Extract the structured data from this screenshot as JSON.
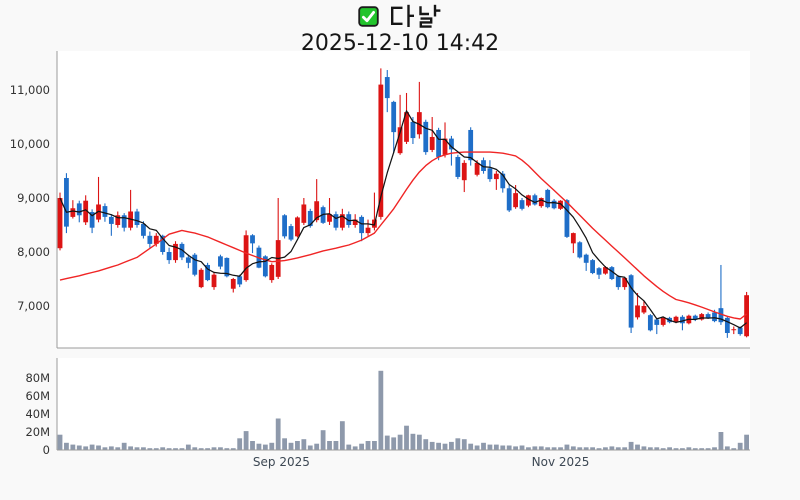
{
  "header": {
    "symbol_title": "다날",
    "checkbox_icon": "green-checked-checkbox",
    "datetime_title": "2025-12-10 14:42"
  },
  "colors": {
    "up_candle": "#dc1414",
    "down_candle": "#1f6ec8",
    "ma_short_line": "#141414",
    "ma_long_line": "#f02525",
    "volume_bar": "#8e99ab",
    "plot_background": "#ffffff",
    "page_background": "#f9f9f9",
    "spine": "#9b9b9b",
    "price_tick_label": "#333333",
    "x_tick_label": "#3d4854",
    "checkbox_green": "#22c42c"
  },
  "chart_data": {
    "type": "candlestick+volume",
    "title": "다날",
    "subtitle": "2025-12-10 14:42",
    "convention": "korean: red = up day, blue = down day",
    "series_legend": [
      {
        "name": "short moving average",
        "color": "black"
      },
      {
        "name": "long moving average",
        "color": "red"
      }
    ],
    "price_axis": {
      "ticks": [
        {
          "value": 11000,
          "label": "11,000"
        },
        {
          "value": 10000,
          "label": "10,000"
        },
        {
          "value": 9000,
          "label": "9,000"
        },
        {
          "value": 8000,
          "label": "8,000"
        },
        {
          "value": 7000,
          "label": "7,000"
        }
      ],
      "range": [
        6240,
        11760
      ],
      "grid": false
    },
    "volume_axis": {
      "ticks": [
        {
          "value": 80,
          "label": "80M"
        },
        {
          "value": 60,
          "label": "60M"
        },
        {
          "value": 40,
          "label": "40M"
        },
        {
          "value": 20,
          "label": "20M"
        },
        {
          "value": 0,
          "label": "0"
        }
      ],
      "range": [
        0,
        102
      ],
      "unit": "millions of shares"
    },
    "x_ticks": [
      {
        "day": 34.5,
        "label": "Sep 2025"
      },
      {
        "day": 78,
        "label": "Nov 2025"
      }
    ],
    "n_days": 108,
    "candles_ohlc": [
      [
        8070,
        9100,
        8030,
        9000
      ],
      [
        9370,
        9460,
        8350,
        8470
      ],
      [
        8650,
        8960,
        8620,
        8810
      ],
      [
        8900,
        8950,
        8550,
        8680
      ],
      [
        8550,
        9050,
        8500,
        8950
      ],
      [
        8740,
        8790,
        8350,
        8450
      ],
      [
        8600,
        9390,
        8550,
        8880
      ],
      [
        8850,
        8900,
        8560,
        8650
      ],
      [
        8650,
        8700,
        8300,
        8520
      ],
      [
        8500,
        8750,
        8450,
        8680
      ],
      [
        8680,
        8720,
        8380,
        8450
      ],
      [
        8450,
        9150,
        8400,
        8750
      ],
      [
        8750,
        8800,
        8450,
        8500
      ],
      [
        8520,
        8570,
        8250,
        8300
      ],
      [
        8300,
        8380,
        8080,
        8150
      ],
      [
        8150,
        8350,
        8100,
        8300
      ],
      [
        8300,
        8320,
        7950,
        8000
      ],
      [
        8000,
        8080,
        7780,
        7850
      ],
      [
        7850,
        8200,
        7800,
        8150
      ],
      [
        8150,
        8180,
        7850,
        7900
      ],
      [
        7900,
        7950,
        7700,
        7800
      ],
      [
        7950,
        7980,
        7550,
        7580
      ],
      [
        7350,
        7700,
        7330,
        7670
      ],
      [
        7760,
        7800,
        7460,
        7480
      ],
      [
        7350,
        7620,
        7300,
        7580
      ],
      [
        7920,
        7950,
        7680,
        7730
      ],
      [
        7890,
        7900,
        7530,
        7550
      ],
      [
        7320,
        7520,
        7250,
        7500
      ],
      [
        7550,
        7580,
        7350,
        7400
      ],
      [
        7480,
        8400,
        7450,
        8310
      ],
      [
        8310,
        8330,
        7980,
        8160
      ],
      [
        8080,
        8120,
        7700,
        7710
      ],
      [
        7920,
        7940,
        7530,
        7550
      ],
      [
        7480,
        7790,
        7430,
        7760
      ],
      [
        7540,
        9000,
        7500,
        8220
      ],
      [
        8680,
        8700,
        8250,
        8290
      ],
      [
        8480,
        8520,
        8200,
        8230
      ],
      [
        8290,
        8660,
        8270,
        8640
      ],
      [
        8540,
        9000,
        8500,
        8880
      ],
      [
        8760,
        8800,
        8450,
        8480
      ],
      [
        8590,
        9350,
        8550,
        8940
      ],
      [
        8830,
        8860,
        8520,
        8540
      ],
      [
        8560,
        9000,
        8500,
        8700
      ],
      [
        8700,
        8750,
        8400,
        8450
      ],
      [
        8450,
        8800,
        8400,
        8700
      ],
      [
        8700,
        8750,
        8450,
        8500
      ],
      [
        8500,
        8700,
        8450,
        8600
      ],
      [
        8650,
        8680,
        8200,
        8350
      ],
      [
        8350,
        8600,
        8300,
        8450
      ],
      [
        8450,
        9100,
        8400,
        8600
      ],
      [
        8650,
        11400,
        8600,
        11100
      ],
      [
        11240,
        11370,
        10590,
        10850
      ],
      [
        10780,
        10800,
        9830,
        10220
      ],
      [
        9830,
        10910,
        9800,
        10310
      ],
      [
        10040,
        10945,
        10000,
        10590
      ],
      [
        10410,
        10500,
        10000,
        10110
      ],
      [
        10180,
        11150,
        10100,
        10590
      ],
      [
        10410,
        10450,
        9800,
        9850
      ],
      [
        9890,
        10500,
        9850,
        10130
      ],
      [
        10260,
        10300,
        9700,
        9760
      ],
      [
        9800,
        10400,
        9750,
        10100
      ],
      [
        10100,
        10150,
        9600,
        9900
      ],
      [
        9760,
        9800,
        9350,
        9390
      ],
      [
        9330,
        9700,
        9110,
        9650
      ],
      [
        10260,
        10310,
        9600,
        9700
      ],
      [
        9430,
        9700,
        9400,
        9650
      ],
      [
        9700,
        9750,
        9450,
        9500
      ],
      [
        9550,
        9700,
        9300,
        9350
      ],
      [
        9350,
        9500,
        9150,
        9450
      ],
      [
        9450,
        9500,
        9100,
        9180
      ],
      [
        9180,
        9240,
        8740,
        8770
      ],
      [
        8830,
        9240,
        8800,
        9090
      ],
      [
        8960,
        9000,
        8770,
        8800
      ],
      [
        8860,
        9060,
        8830,
        9050
      ],
      [
        9050,
        9080,
        8860,
        8880
      ],
      [
        8850,
        9010,
        8820,
        9000
      ],
      [
        9150,
        9170,
        8810,
        8830
      ],
      [
        8950,
        8980,
        8790,
        8810
      ],
      [
        8800,
        8960,
        8780,
        8950
      ],
      [
        8960,
        8980,
        8260,
        8280
      ],
      [
        8160,
        8360,
        7980,
        8350
      ],
      [
        8180,
        8200,
        7880,
        7900
      ],
      [
        7950,
        7970,
        7650,
        7800
      ],
      [
        7850,
        7870,
        7590,
        7610
      ],
      [
        7700,
        7720,
        7500,
        7580
      ],
      [
        7600,
        7740,
        7580,
        7720
      ],
      [
        7720,
        7740,
        7480,
        7500
      ],
      [
        7550,
        7570,
        7300,
        7350
      ],
      [
        7350,
        7530,
        7300,
        7520
      ],
      [
        7570,
        7590,
        6500,
        6600
      ],
      [
        6790,
        7240,
        6750,
        7010
      ],
      [
        6880,
        7100,
        6850,
        7000
      ],
      [
        6830,
        6850,
        6530,
        6550
      ],
      [
        6750,
        6780,
        6480,
        6650
      ],
      [
        6650,
        6800,
        6620,
        6780
      ],
      [
        6780,
        6800,
        6680,
        6700
      ],
      [
        6700,
        6820,
        6680,
        6800
      ],
      [
        6800,
        6830,
        6550,
        6680
      ],
      [
        6680,
        6840,
        6660,
        6820
      ],
      [
        6820,
        6840,
        6720,
        6750
      ],
      [
        6750,
        6870,
        6730,
        6850
      ],
      [
        6850,
        6880,
        6760,
        6780
      ],
      [
        6880,
        6930,
        6700,
        6720
      ],
      [
        6960,
        7760,
        6650,
        6700
      ],
      [
        6780,
        6800,
        6410,
        6500
      ],
      [
        6560,
        6620,
        6480,
        6570
      ],
      [
        6600,
        6620,
        6450,
        6480
      ],
      [
        6440,
        7260,
        6420,
        7200
      ]
    ],
    "volumes_millions": [
      17,
      8,
      6,
      5,
      4,
      6,
      5,
      3,
      4,
      3,
      8,
      4,
      3,
      3,
      2,
      2,
      3,
      2,
      2,
      2,
      6,
      3,
      2,
      2,
      3,
      3,
      2,
      2,
      13,
      21,
      10,
      7,
      6,
      8,
      35,
      13,
      8,
      10,
      12,
      5,
      7,
      22,
      10,
      10,
      32,
      6,
      4,
      7,
      10,
      10,
      88,
      16,
      14,
      17,
      27,
      18,
      17,
      12,
      9,
      8,
      7,
      9,
      13,
      12,
      7,
      5,
      8,
      6,
      6,
      5,
      5,
      4,
      5,
      3,
      4,
      4,
      3,
      3,
      3,
      6,
      4,
      3,
      3,
      3,
      2,
      3,
      4,
      3,
      3,
      9,
      6,
      4,
      3,
      3,
      2,
      3,
      2,
      2,
      3,
      2,
      2,
      2,
      3,
      20,
      4,
      2,
      8,
      17
    ],
    "ma_short_window": 5,
    "ma_long_anchor_points": [
      [
        0,
        7480
      ],
      [
        3,
        7560
      ],
      [
        6,
        7650
      ],
      [
        9,
        7760
      ],
      [
        12,
        7900
      ],
      [
        15,
        8150
      ],
      [
        17,
        8330
      ],
      [
        19,
        8400
      ],
      [
        21,
        8350
      ],
      [
        23,
        8280
      ],
      [
        25,
        8180
      ],
      [
        27,
        8080
      ],
      [
        29,
        7980
      ],
      [
        31,
        7890
      ],
      [
        33,
        7820
      ],
      [
        35,
        7840
      ],
      [
        37,
        7890
      ],
      [
        39,
        7950
      ],
      [
        41,
        8020
      ],
      [
        43,
        8070
      ],
      [
        45,
        8130
      ],
      [
        47,
        8220
      ],
      [
        49,
        8350
      ],
      [
        50,
        8500
      ],
      [
        51,
        8650
      ],
      [
        52,
        8800
      ],
      [
        53,
        8980
      ],
      [
        54,
        9160
      ],
      [
        55,
        9330
      ],
      [
        56,
        9480
      ],
      [
        57,
        9600
      ],
      [
        58,
        9690
      ],
      [
        59,
        9760
      ],
      [
        60,
        9800
      ],
      [
        61,
        9830
      ],
      [
        63,
        9850
      ],
      [
        67,
        9850
      ],
      [
        69,
        9830
      ],
      [
        71,
        9780
      ],
      [
        72,
        9700
      ],
      [
        73,
        9600
      ],
      [
        74,
        9480
      ],
      [
        75,
        9360
      ],
      [
        76,
        9250
      ],
      [
        77,
        9140
      ],
      [
        78,
        9030
      ],
      [
        79,
        8920
      ],
      [
        80,
        8800
      ],
      [
        81,
        8680
      ],
      [
        82,
        8560
      ],
      [
        83,
        8440
      ],
      [
        84,
        8330
      ],
      [
        85,
        8220
      ],
      [
        86,
        8110
      ],
      [
        87,
        8000
      ],
      [
        88,
        7890
      ],
      [
        89,
        7780
      ],
      [
        90,
        7670
      ],
      [
        91,
        7560
      ],
      [
        92,
        7460
      ],
      [
        93,
        7360
      ],
      [
        94,
        7270
      ],
      [
        95,
        7190
      ],
      [
        96,
        7120
      ],
      [
        98,
        7060
      ],
      [
        100,
        6980
      ],
      [
        102,
        6890
      ],
      [
        104,
        6810
      ],
      [
        105,
        6780
      ],
      [
        106,
        6760
      ],
      [
        107,
        6850
      ]
    ]
  }
}
